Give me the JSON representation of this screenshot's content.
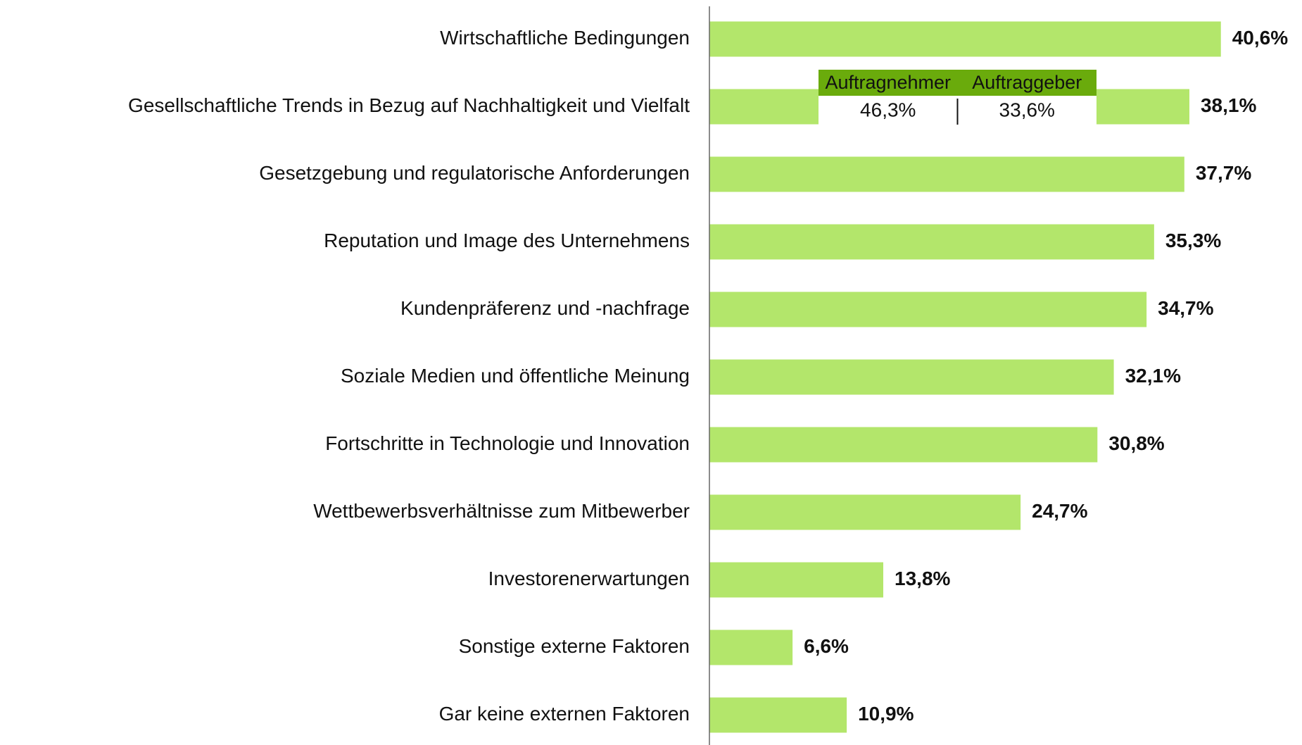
{
  "chart_data": {
    "type": "barh",
    "categories": [
      "Wirtschaftliche Bedingungen",
      "Gesellschaftliche Trends in Bezug auf Nachhaltigkeit und Vielfalt",
      "Gesetzgebung und regulatorische Anforderungen",
      "Reputation und Image des Unternehmens",
      "Kundenpräferenz und -nachfrage",
      "Soziale Medien und öffentliche Meinung",
      "Fortschritte in Technologie und Innovation",
      "Wettbewerbsverhältnisse zum Mitbewerber",
      "Investorenerwartungen",
      "Sonstige externe Faktoren",
      "Gar keine externen Faktoren"
    ],
    "values": [
      40.6,
      38.1,
      37.7,
      35.3,
      34.7,
      32.1,
      30.8,
      24.7,
      13.8,
      6.6,
      10.9
    ],
    "value_labels": [
      "40,6%",
      "38,1%",
      "37,7%",
      "35,3%",
      "34,7%",
      "32,1%",
      "30,8%",
      "24,7%",
      "13,8%",
      "6,6%",
      "10,9%"
    ],
    "color": "#b3e66b",
    "inset": {
      "columns": [
        "Auftragnehmer",
        "Auftraggeber"
      ],
      "values": [
        46.3,
        33.6
      ],
      "value_labels": [
        "46,3%",
        "33,6%"
      ],
      "color": "#6aab0c"
    }
  }
}
